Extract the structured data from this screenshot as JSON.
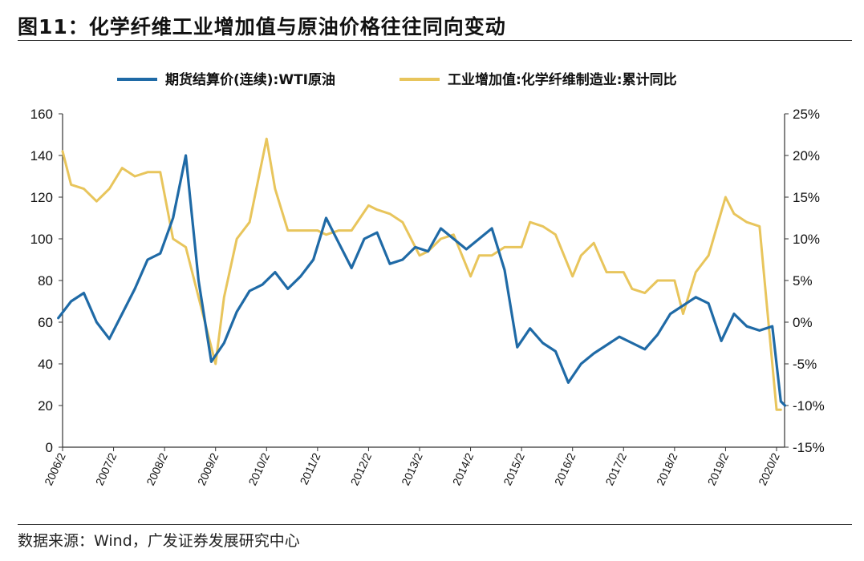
{
  "figure": {
    "title": "图11：化学纤维工业增加值与原油价格往往同向变动",
    "source": "数据来源：Wind，广发证券发展研究中心"
  },
  "colors": {
    "wti": "#1f6aa6",
    "fiber": "#e8c55c",
    "axis": "#333333"
  },
  "chart_data": {
    "type": "line",
    "title": "",
    "legend_placement": "top",
    "grid": false,
    "x_tick_labels": [
      "2006/2",
      "2007/2",
      "2008/2",
      "2009/2",
      "2010/2",
      "2011/2",
      "2012/2",
      "2013/2",
      "2014/2",
      "2015/2",
      "2016/2",
      "2017/2",
      "2018/2",
      "2019/2",
      "2020/2"
    ],
    "y_left": {
      "min": 0,
      "max": 160,
      "ticks": [
        "0",
        "20",
        "40",
        "60",
        "80",
        "100",
        "120",
        "140",
        "160"
      ]
    },
    "y_right": {
      "min": -15,
      "max": 25,
      "ticks": [
        "-15%",
        "-10%",
        "-5%",
        "0%",
        "5%",
        "10%",
        "15%",
        "20%",
        "25%"
      ]
    },
    "series": [
      {
        "name": "期货结算价(连续):WTI原油",
        "axis": "left",
        "x": [
          "2006/1",
          "2006/4",
          "2006/7",
          "2006/10",
          "2007/1",
          "2007/4",
          "2007/7",
          "2007/10",
          "2008/1",
          "2008/4",
          "2008/7",
          "2008/10",
          "2009/1",
          "2009/4",
          "2009/7",
          "2009/10",
          "2010/1",
          "2010/4",
          "2010/7",
          "2010/10",
          "2011/1",
          "2011/4",
          "2011/7",
          "2011/10",
          "2012/1",
          "2012/4",
          "2012/7",
          "2012/10",
          "2013/1",
          "2013/4",
          "2013/7",
          "2013/10",
          "2014/1",
          "2014/4",
          "2014/7",
          "2014/10",
          "2015/1",
          "2015/4",
          "2015/7",
          "2015/10",
          "2016/1",
          "2016/4",
          "2016/7",
          "2016/10",
          "2017/1",
          "2017/4",
          "2017/7",
          "2017/10",
          "2018/1",
          "2018/4",
          "2018/7",
          "2018/10",
          "2019/1",
          "2019/4",
          "2019/7",
          "2019/10",
          "2020/1",
          "2020/3",
          "2020/4"
        ],
        "values": [
          62,
          70,
          74,
          60,
          52,
          64,
          76,
          90,
          93,
          110,
          140,
          80,
          41,
          50,
          65,
          75,
          78,
          84,
          76,
          82,
          90,
          110,
          98,
          86,
          100,
          103,
          88,
          90,
          96,
          94,
          105,
          100,
          95,
          100,
          105,
          85,
          48,
          57,
          50,
          46,
          31,
          40,
          45,
          49,
          53,
          50,
          47,
          54,
          64,
          68,
          72,
          69,
          51,
          64,
          58,
          56,
          58,
          22,
          20
        ]
      },
      {
        "name": "工业增加值:化学纤维制造业:累计同比",
        "axis": "right",
        "x": [
          "2006/2",
          "2006/4",
          "2006/7",
          "2006/10",
          "2007/1",
          "2007/4",
          "2007/7",
          "2007/10",
          "2008/1",
          "2008/4",
          "2008/7",
          "2008/10",
          "2009/2",
          "2009/4",
          "2009/7",
          "2009/10",
          "2010/2",
          "2010/4",
          "2010/7",
          "2010/10",
          "2011/2",
          "2011/4",
          "2011/7",
          "2011/10",
          "2012/2",
          "2012/4",
          "2012/7",
          "2012/10",
          "2013/2",
          "2013/4",
          "2013/7",
          "2013/10",
          "2014/2",
          "2014/4",
          "2014/7",
          "2014/10",
          "2015/2",
          "2015/4",
          "2015/7",
          "2015/10",
          "2016/2",
          "2016/4",
          "2016/7",
          "2016/10",
          "2017/2",
          "2017/4",
          "2017/7",
          "2017/10",
          "2018/2",
          "2018/4",
          "2018/7",
          "2018/10",
          "2019/2",
          "2019/4",
          "2019/7",
          "2019/10",
          "2020/2",
          "2020/3"
        ],
        "values": [
          20.5,
          16.5,
          16,
          14.5,
          16,
          18.5,
          17.5,
          18,
          18,
          10,
          9,
          3,
          -5,
          3,
          10,
          12,
          22,
          16,
          11,
          11,
          11,
          10.5,
          11,
          11,
          14,
          13.5,
          13,
          12,
          8,
          8.5,
          10,
          10.5,
          5.5,
          8,
          8,
          9,
          9,
          12,
          11.5,
          10.5,
          5.5,
          8,
          9.5,
          6,
          6,
          4,
          3.5,
          5,
          5,
          1,
          6,
          8,
          15,
          13,
          12,
          11.5,
          -10.5,
          -10.5
        ]
      }
    ]
  }
}
